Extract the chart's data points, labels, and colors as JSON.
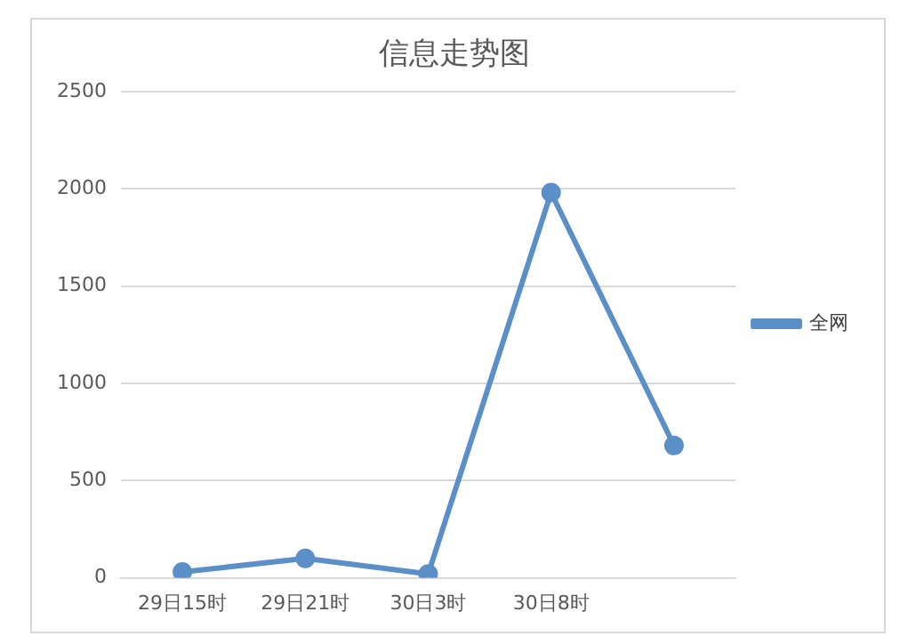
{
  "chart_data": {
    "type": "line",
    "title": "信息走势图",
    "categories": [
      "29日15时",
      "29日21时",
      "30日3时",
      "30日8时",
      null
    ],
    "series": [
      {
        "name": "全网",
        "color": "#5b8fc7",
        "values": [
          30,
          100,
          20,
          1980,
          680
        ]
      }
    ],
    "ylim": [
      0,
      2500
    ],
    "yticks": [
      0,
      500,
      1000,
      1500,
      2000,
      2500
    ],
    "grid": "y",
    "legend": "right",
    "marker": "circle",
    "line_style": "solid"
  }
}
